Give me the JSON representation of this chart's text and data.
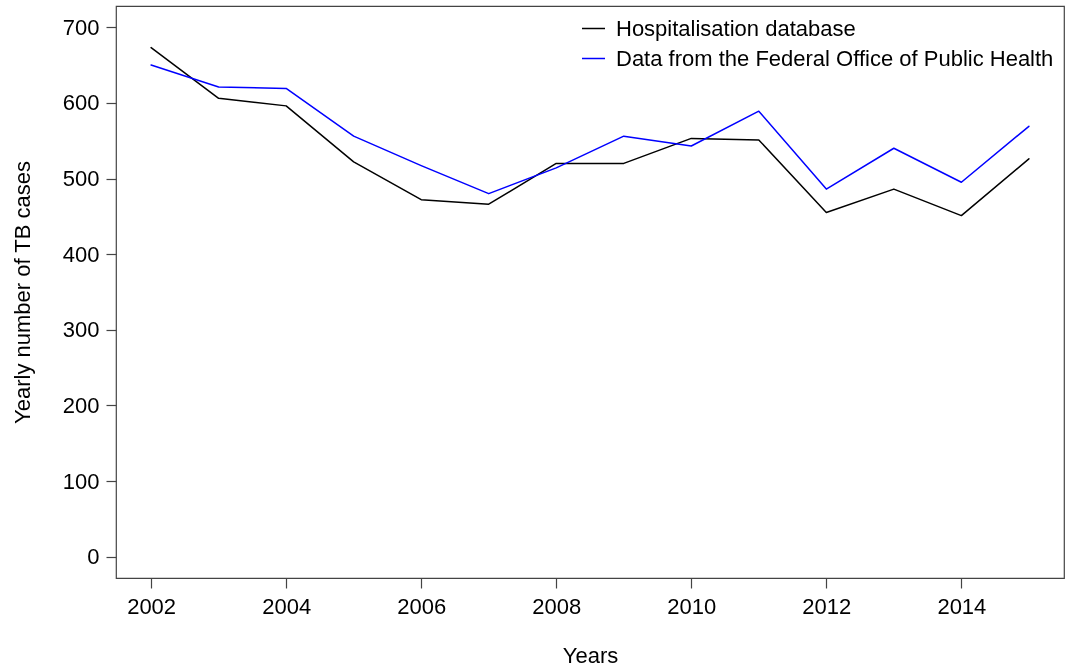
{
  "chart_data": {
    "type": "line",
    "xlabel": "Years",
    "ylabel": "Yearly number of TB cases",
    "x": [
      2002,
      2003,
      2004,
      2005,
      2006,
      2007,
      2008,
      2009,
      2010,
      2011,
      2012,
      2013,
      2014,
      2015
    ],
    "series": [
      {
        "name": "Hospitalisation database",
        "color": "#000000",
        "values": [
          673,
          606,
          596,
          522,
          472,
          466,
          520,
          520,
          553,
          551,
          455,
          486,
          451,
          526
        ]
      },
      {
        "name": "Data from the Federal Office of Public Health",
        "color": "#0000ff",
        "values": [
          650,
          621,
          619,
          556,
          517,
          480,
          514,
          556,
          543,
          589,
          486,
          540,
          495,
          569
        ]
      }
    ],
    "xlim": [
      2001.48,
      2015.52
    ],
    "ylim": [
      -28,
      728
    ],
    "xticks": [
      2002,
      2004,
      2006,
      2008,
      2010,
      2012,
      2014
    ],
    "yticks": [
      0,
      100,
      200,
      300,
      400,
      500,
      600,
      700
    ],
    "grid": false,
    "legend": "top right",
    "marker": "none",
    "line_style": "solid"
  }
}
